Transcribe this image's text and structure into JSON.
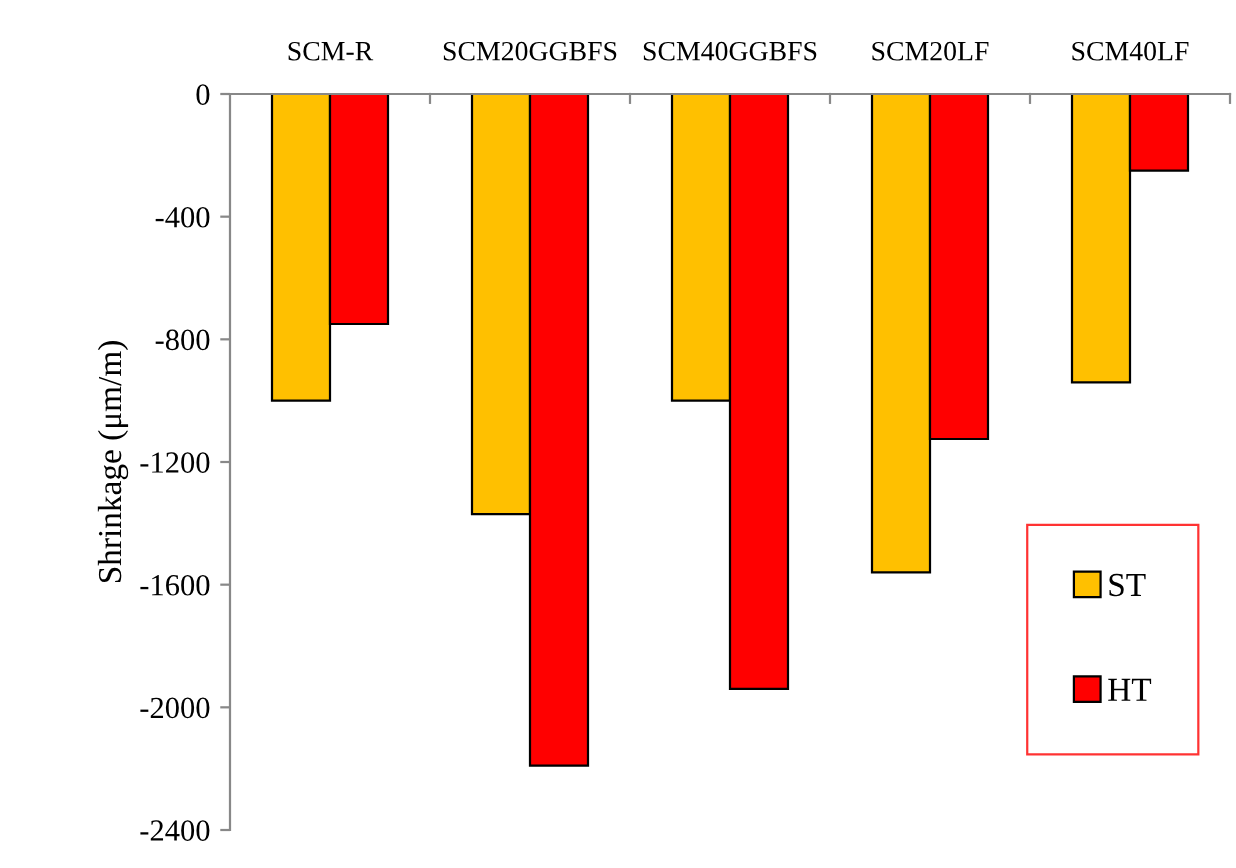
{
  "chart_data": {
    "type": "bar",
    "ylabel": "Shrinkage (μm/m)",
    "categories": [
      "SCM-R",
      "SCM20GGBFS",
      "SCM40GGBFS",
      "SCM20LF",
      "SCM40LF"
    ],
    "series": [
      {
        "name": "ST",
        "color": "#ffc000",
        "values": [
          -1000,
          -1370,
          -1000,
          -1560,
          -940
        ]
      },
      {
        "name": "HT",
        "color": "#ff0000",
        "values": [
          -750,
          -2190,
          -1940,
          -1125,
          -250
        ]
      }
    ],
    "ylim": [
      -2400,
      0
    ],
    "yticks": [
      -2400,
      -2000,
      -1600,
      -1200,
      -800,
      -400,
      0
    ],
    "grid": false,
    "legend": "bottom right"
  }
}
